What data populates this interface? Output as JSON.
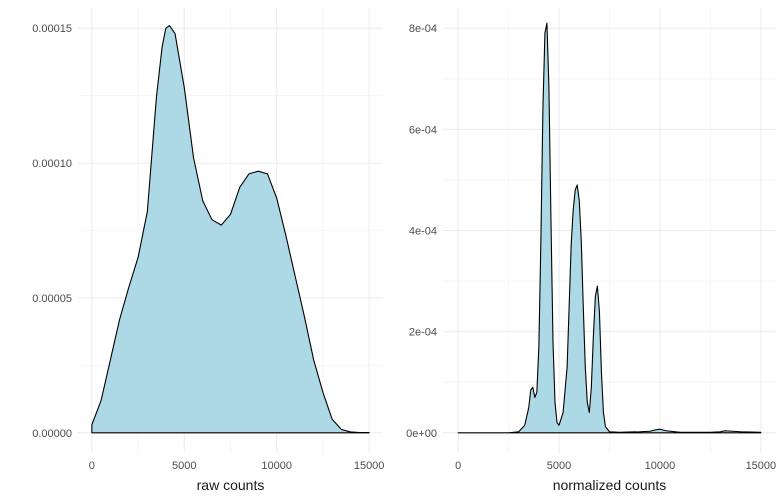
{
  "colors": {
    "fill": "#add8e6",
    "line": "#000000",
    "grid": "#ebebeb",
    "text": "#4d4d4d"
  },
  "chart_data": [
    {
      "type": "area",
      "title": "",
      "xlabel": "raw counts",
      "ylabel": "",
      "xlim": [
        0,
        15000
      ],
      "ylim": [
        0,
        0.00015
      ],
      "x_ticks": [
        0,
        5000,
        10000,
        15000
      ],
      "x_tick_labels": [
        "0",
        "5000",
        "10000",
        "15000"
      ],
      "y_ticks": [
        0,
        5e-05,
        0.0001,
        0.00015
      ],
      "y_tick_labels": [
        "0.00000",
        "0.00005",
        "0.00010",
        "0.00015"
      ],
      "grid": true,
      "series": [
        {
          "x": [
            0,
            500,
            1000,
            1500,
            2000,
            2500,
            3000,
            3500,
            3800,
            4000,
            4200,
            4500,
            5000,
            5500,
            6000,
            6500,
            7000,
            7500,
            8000,
            8500,
            9000,
            9500,
            10000,
            10500,
            11000,
            11500,
            12000,
            12500,
            13000,
            13500,
            14000,
            14500,
            15000
          ],
          "y": [
            3e-06,
            1.2e-05,
            2.7e-05,
            4.2e-05,
            5.4e-05,
            6.5e-05,
            8.2e-05,
            0.000125,
            0.000143,
            0.00015,
            0.000151,
            0.000148,
            0.000128,
            0.000102,
            8.6e-05,
            7.9e-05,
            7.7e-05,
            8.1e-05,
            9.1e-05,
            9.6e-05,
            9.7e-05,
            9.6e-05,
            8.7e-05,
            7.3e-05,
            5.8e-05,
            4.3e-05,
            2.7e-05,
            1.5e-05,
            5e-06,
            1.2e-06,
            3e-07,
            1e-07,
            1e-07
          ]
        }
      ]
    },
    {
      "type": "area",
      "title": "",
      "xlabel": "normalized counts",
      "ylabel": "",
      "xlim": [
        0,
        15000
      ],
      "ylim": [
        0,
        0.0008
      ],
      "x_ticks": [
        0,
        5000,
        10000,
        15000
      ],
      "x_tick_labels": [
        "0",
        "5000",
        "10000",
        "15000"
      ],
      "y_ticks": [
        0,
        0.0002,
        0.0004,
        0.0006,
        0.0008
      ],
      "y_tick_labels": [
        "0e+00",
        "2e-04",
        "4e-04",
        "6e-04",
        "8e-04"
      ],
      "grid": true,
      "series": [
        {
          "x": [
            0,
            2500,
            3000,
            3300,
            3500,
            3600,
            3700,
            3800,
            3900,
            4000,
            4100,
            4200,
            4300,
            4400,
            4500,
            4600,
            4700,
            4800,
            4900,
            5000,
            5200,
            5400,
            5500,
            5600,
            5700,
            5800,
            5900,
            6000,
            6100,
            6200,
            6300,
            6400,
            6500,
            6600,
            6700,
            6800,
            6900,
            7000,
            7100,
            7200,
            7300,
            7500,
            8000,
            9000,
            9500,
            9800,
            10000,
            10300,
            11000,
            12500,
            13000,
            13200,
            14000,
            15000
          ],
          "y": [
            0,
            0,
            2e-06,
            1.5e-05,
            5e-05,
            8.5e-05,
            9e-05,
            7e-05,
            8e-05,
            0.00017,
            0.00038,
            0.00064,
            0.00079,
            0.00081,
            0.00068,
            0.00042,
            0.00018,
            6e-05,
            2e-05,
            1.5e-05,
            4e-05,
            0.00013,
            0.00025,
            0.00037,
            0.00044,
            0.00048,
            0.00049,
            0.00046,
            0.00038,
            0.00025,
            0.00013,
            6e-05,
            4e-05,
            9e-05,
            0.00019,
            0.00027,
            0.00029,
            0.00024,
            0.00012,
            4e-05,
            1.2e-05,
            2e-06,
            1e-06,
            2e-06,
            3e-06,
            6e-06,
            7e-06,
            4e-06,
            1e-06,
            1e-06,
            2e-06,
            4e-06,
            2e-06,
            1e-06
          ]
        }
      ]
    }
  ]
}
